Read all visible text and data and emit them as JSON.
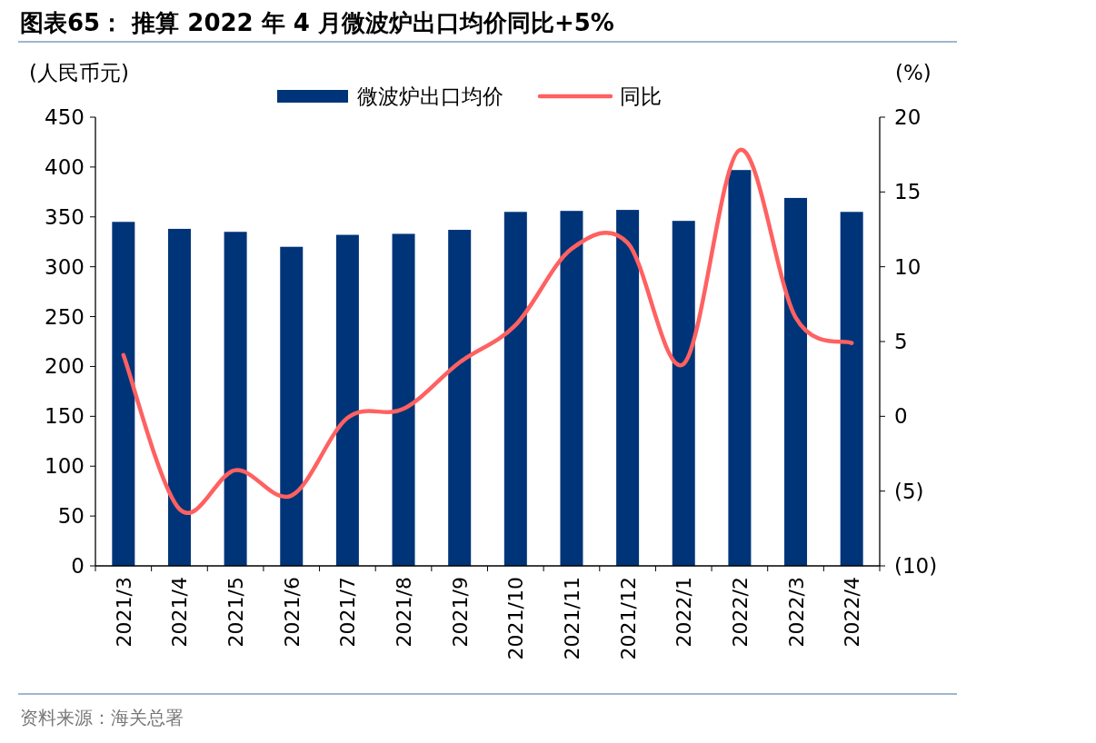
{
  "chart_data": {
    "type": "bar",
    "title": "图表65：  推算 2022 年 4 月微波炉出口均价同比+5%",
    "ylabel": "(人民币元)",
    "y2label": "(%)",
    "categories": [
      "2021/3",
      "2021/4",
      "2021/5",
      "2021/6",
      "2021/7",
      "2021/8",
      "2021/9",
      "2021/10",
      "2021/11",
      "2021/12",
      "2022/1",
      "2022/2",
      "2022/3",
      "2022/4"
    ],
    "series": [
      {
        "name": "微波炉出口均价",
        "color": "#003478",
        "values": [
          345,
          338,
          335,
          320,
          332,
          333,
          337,
          355,
          356,
          357,
          346,
          397,
          369,
          355
        ]
      },
      {
        "name": "同比",
        "type": "line",
        "axis": "y2",
        "color": "#ff6161",
        "values": [
          4.1,
          -6.2,
          -3.6,
          -5.3,
          -0.1,
          0.5,
          3.6,
          6.1,
          11.2,
          11.6,
          3.5,
          17.8,
          6.6,
          4.9
        ]
      }
    ],
    "ylim": [
      0,
      450
    ],
    "yticks": [
      0,
      50,
      100,
      150,
      200,
      250,
      300,
      350,
      400,
      450
    ],
    "y2lim": [
      -10,
      20
    ],
    "y2ticks": [
      {
        "value": -10,
        "label": "(10)"
      },
      {
        "value": -5,
        "label": "(5)"
      },
      0,
      5,
      10,
      15,
      20
    ],
    "legend": "top",
    "grid": false,
    "marker": "none",
    "line_style": "solid",
    "annotations": [
      "资料来源：海关总署"
    ]
  }
}
